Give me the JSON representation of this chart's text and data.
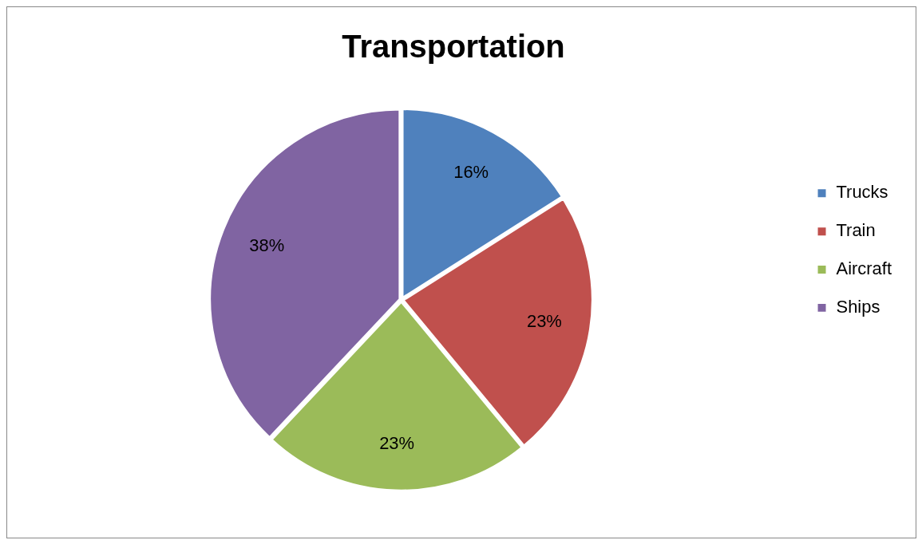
{
  "chart_data": {
    "type": "pie",
    "title": "Transportation",
    "categories": [
      "Trucks",
      "Train",
      "Aircraft",
      "Ships"
    ],
    "values": [
      16,
      23,
      23,
      38
    ],
    "colors": [
      "#4f81bd",
      "#c0504d",
      "#9bbb59",
      "#8064a2"
    ],
    "value_labels": [
      "16%",
      "23%",
      "23%",
      "38%"
    ],
    "legend": "right"
  }
}
